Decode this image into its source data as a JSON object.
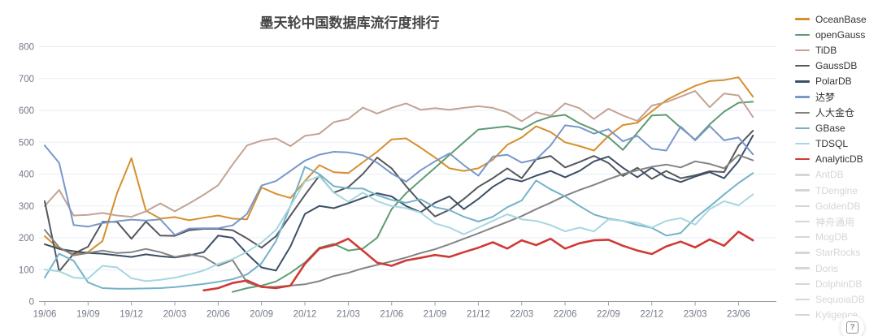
{
  "title": "墨天轮中国数据库流行度排行",
  "help_button": {
    "label": "?"
  },
  "axis": {
    "y_label_color": "#75798a",
    "x_label_color": "#75798a",
    "axis_line_color": "#9a9da8",
    "grid_line_color": "#e8eef5"
  },
  "chart_data": {
    "type": "line",
    "title": "墨天轮中国数据库流行度排行",
    "xlabel": "",
    "ylabel": "",
    "ylim": [
      0,
      800
    ],
    "y_ticks": [
      0,
      100,
      200,
      300,
      400,
      500,
      600,
      700,
      800
    ],
    "grid": true,
    "legend_position": "right",
    "x": [
      "19/06",
      "19/07",
      "19/08",
      "19/09",
      "19/10",
      "19/11",
      "19/12",
      "20/01",
      "20/02",
      "20/03",
      "20/04",
      "20/05",
      "20/06",
      "20/07",
      "20/08",
      "20/09",
      "20/10",
      "20/11",
      "20/12",
      "21/01",
      "21/02",
      "21/03",
      "21/04",
      "21/05",
      "21/06",
      "21/07",
      "21/08",
      "21/09",
      "21/10",
      "21/11",
      "21/12",
      "22/01",
      "22/02",
      "22/03",
      "22/04",
      "22/05",
      "22/06",
      "22/07",
      "22/08",
      "22/09",
      "22/10",
      "22/11",
      "22/12",
      "23/01",
      "23/02",
      "23/03",
      "23/04",
      "23/05",
      "23/06",
      "23/07"
    ],
    "x_tick_labels": [
      "19/06",
      "19/09",
      "19/12",
      "20/03",
      "20/06",
      "20/09",
      "20/12",
      "21/03",
      "21/06",
      "21/09",
      "21/12",
      "22/03",
      "22/06",
      "22/09",
      "22/12",
      "23/03",
      "23/06"
    ],
    "series": [
      {
        "name": "OceanBase",
        "color": "#d78f2c",
        "enabled": true,
        "values": [
          205,
          165,
          150,
          155,
          190,
          340,
          450,
          285,
          260,
          265,
          255,
          263,
          270,
          260,
          258,
          358,
          338,
          325,
          378,
          428,
          406,
          403,
          437,
          470,
          509,
          512,
          483,
          452,
          418,
          410,
          418,
          445,
          492,
          515,
          550,
          532,
          500,
          488,
          474,
          520,
          554,
          561,
          597,
          632,
          655,
          677,
          692,
          695,
          704,
          643
        ]
      },
      {
        "name": "openGauss",
        "color": "#5f9b72",
        "enabled": true,
        "values": [
          null,
          null,
          null,
          null,
          null,
          null,
          null,
          null,
          null,
          null,
          null,
          null,
          null,
          30,
          42,
          50,
          63,
          90,
          122,
          169,
          181,
          160,
          166,
          200,
          290,
          340,
          380,
          420,
          460,
          500,
          540,
          545,
          550,
          540,
          565,
          580,
          586,
          559,
          540,
          516,
          476,
          530,
          584,
          586,
          546,
          508,
          556,
          596,
          624,
          627
        ]
      },
      {
        "name": "TiDB",
        "color": "#c4a294",
        "enabled": true,
        "values": [
          300,
          350,
          270,
          272,
          278,
          270,
          266,
          283,
          308,
          283,
          308,
          335,
          365,
          430,
          490,
          505,
          512,
          488,
          520,
          527,
          563,
          573,
          609,
          590,
          608,
          622,
          602,
          607,
          602,
          608,
          613,
          608,
          594,
          566,
          594,
          583,
          622,
          607,
          573,
          605,
          584,
          567,
          615,
          626,
          643,
          661,
          610,
          653,
          647,
          579
        ]
      },
      {
        "name": "GaussDB",
        "color": "#54575c",
        "enabled": true,
        "values": [
          315,
          95,
          150,
          172,
          250,
          250,
          197,
          251,
          207,
          206,
          224,
          228,
          228,
          224,
          198,
          169,
          205,
          270,
          334,
          395,
          342,
          359,
          400,
          452,
          418,
          362,
          311,
          267,
          288,
          322,
          360,
          387,
          418,
          387,
          446,
          457,
          421,
          438,
          457,
          435,
          394,
          420,
          385,
          410,
          387,
          396,
          409,
          406,
          489,
          536
        ]
      },
      {
        "name": "PolarDB",
        "color": "#3d4f66",
        "enabled": true,
        "values": [
          180,
          165,
          158,
          152,
          150,
          145,
          140,
          148,
          142,
          138,
          145,
          155,
          207,
          200,
          150,
          107,
          97,
          173,
          275,
          300,
          293,
          308,
          325,
          340,
          330,
          300,
          280,
          310,
          330,
          290,
          322,
          360,
          387,
          377,
          395,
          410,
          390,
          410,
          440,
          455,
          420,
          390,
          420,
          390,
          375,
          392,
          406,
          387,
          440,
          521
        ]
      },
      {
        "name": "达梦",
        "color": "#7897cb",
        "enabled": true,
        "values": [
          490,
          435,
          240,
          235,
          246,
          252,
          257,
          254,
          258,
          209,
          229,
          230,
          230,
          239,
          275,
          364,
          378,
          410,
          442,
          461,
          470,
          468,
          459,
          436,
          402,
          376,
          412,
          440,
          465,
          428,
          395,
          455,
          461,
          436,
          446,
          490,
          553,
          547,
          527,
          541,
          503,
          520,
          480,
          474,
          549,
          506,
          551,
          506,
          515,
          462
        ]
      },
      {
        "name": "人大金仓",
        "color": "#838383",
        "enabled": true,
        "values": [
          225,
          170,
          145,
          152,
          160,
          152,
          155,
          165,
          155,
          140,
          148,
          140,
          112,
          130,
          60,
          45,
          46,
          50,
          54,
          64,
          80,
          90,
          104,
          115,
          126,
          138,
          152,
          164,
          180,
          197,
          214,
          232,
          250,
          268,
          290,
          310,
          332,
          350,
          366,
          384,
          400,
          412,
          423,
          430,
          421,
          440,
          432,
          418,
          460,
          443
        ]
      },
      {
        "name": "GBase",
        "color": "#74b2c8",
        "enabled": true,
        "values": [
          75,
          150,
          128,
          60,
          42,
          40,
          40,
          41,
          42,
          45,
          50,
          55,
          62,
          70,
          85,
          120,
          190,
          300,
          423,
          400,
          362,
          355,
          355,
          334,
          319,
          310,
          321,
          296,
          287,
          266,
          251,
          266,
          296,
          317,
          380,
          352,
          330,
          300,
          273,
          260,
          253,
          240,
          231,
          207,
          215,
          262,
          298,
          336,
          372,
          403
        ]
      },
      {
        "name": "TDSQL",
        "color": "#a8d6e0",
        "enabled": true,
        "values": [
          100,
          95,
          75,
          72,
          112,
          107,
          73,
          64,
          68,
          75,
          85,
          97,
          118,
          133,
          156,
          185,
          225,
          300,
          376,
          393,
          342,
          313,
          342,
          315,
          300,
          293,
          279,
          245,
          232,
          211,
          232,
          253,
          274,
          258,
          253,
          240,
          220,
          232,
          220,
          258,
          253,
          247,
          232,
          253,
          262,
          241,
          290,
          315,
          302,
          336
        ]
      },
      {
        "name": "AnalyticDB",
        "color": "#d03a36",
        "enabled": true,
        "emphasis": true,
        "values": [
          null,
          null,
          null,
          null,
          null,
          null,
          null,
          null,
          null,
          null,
          null,
          35,
          42,
          58,
          66,
          46,
          42,
          50,
          118,
          166,
          177,
          197,
          160,
          122,
          112,
          129,
          137,
          146,
          140,
          155,
          169,
          186,
          166,
          192,
          177,
          197,
          166,
          183,
          192,
          194,
          175,
          160,
          149,
          173,
          188,
          170,
          195,
          175,
          219,
          192
        ]
      },
      {
        "name": "AntDB",
        "color": "#d6d6d6",
        "enabled": false,
        "values": []
      },
      {
        "name": "TDengine",
        "color": "#d6d6d6",
        "enabled": false,
        "values": []
      },
      {
        "name": "GoldenDB",
        "color": "#d6d6d6",
        "enabled": false,
        "values": []
      },
      {
        "name": "神舟通用",
        "color": "#d6d6d6",
        "enabled": false,
        "values": []
      },
      {
        "name": "MogDB",
        "color": "#d6d6d6",
        "enabled": false,
        "values": []
      },
      {
        "name": "StarRocks",
        "color": "#d6d6d6",
        "enabled": false,
        "values": []
      },
      {
        "name": "Doris",
        "color": "#d6d6d6",
        "enabled": false,
        "values": []
      },
      {
        "name": "DolphinDB",
        "color": "#d6d6d6",
        "enabled": false,
        "values": []
      },
      {
        "name": "SequoiaDB",
        "color": "#d6d6d6",
        "enabled": false,
        "values": []
      },
      {
        "name": "Kyligence",
        "color": "#d6d6d6",
        "enabled": false,
        "values": []
      }
    ]
  }
}
